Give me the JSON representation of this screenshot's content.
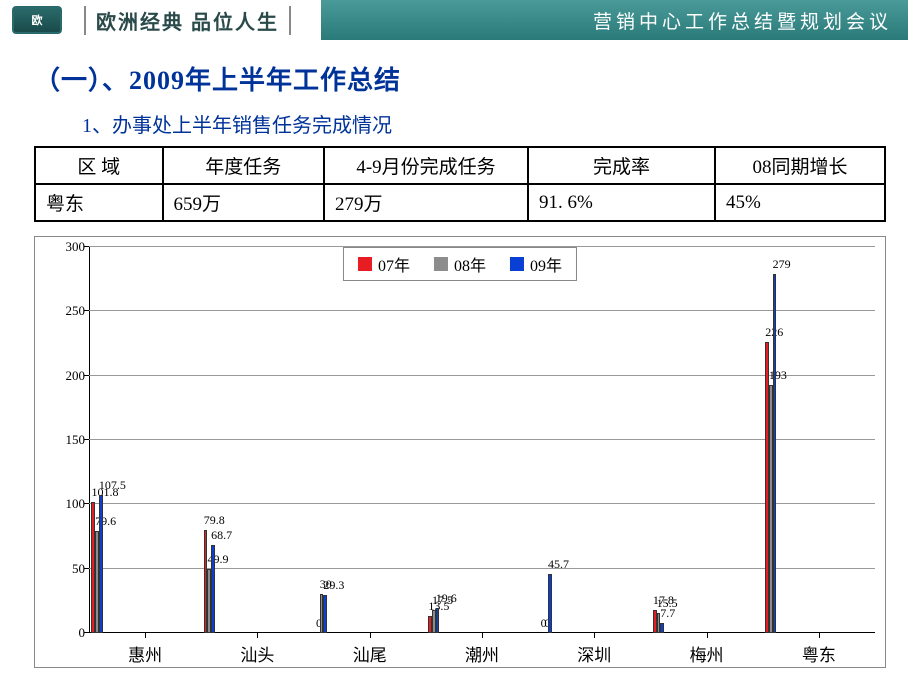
{
  "header": {
    "logo_text": "欧",
    "tagline": "欧洲经典  品位人生",
    "right_title": "营销中心工作总结暨规划会议"
  },
  "title": "（一）、2009年上半年工作总结",
  "subtitle": "1、办事处上半年销售任务完成情况",
  "table": {
    "columns": [
      "区 域",
      "年度任务",
      "4-9月份完成任务",
      "完成率",
      "08同期增长"
    ],
    "rows": [
      [
        "粤东",
        "659万",
        "279万",
        "91. 6%",
        "45%"
      ]
    ],
    "col_widths_pct": [
      15,
      19,
      24,
      22,
      20
    ],
    "border_color": "#000000",
    "header_align": "center",
    "cell_align": "left",
    "fontsize": 19
  },
  "chart": {
    "type": "bar",
    "categories": [
      "惠州",
      "汕头",
      "汕尾",
      "潮州",
      "深圳",
      "梅州",
      "粤东"
    ],
    "series": [
      {
        "name": "07年",
        "color": "#e81c23",
        "values": [
          101.8,
          79.8,
          0,
          13.5,
          0,
          17.8,
          226
        ]
      },
      {
        "name": "08年",
        "color": "#8c8c8c",
        "values": [
          79.6,
          49.9,
          30,
          17.5,
          0,
          15.5,
          193
        ]
      },
      {
        "name": "09年",
        "color": "#0a3fd6",
        "values": [
          107.5,
          68.7,
          29.3,
          19.6,
          45.7,
          7.7,
          279
        ]
      }
    ],
    "ylim": [
      0,
      300
    ],
    "ytick_step": 50,
    "yticks": [
      0,
      50,
      100,
      150,
      200,
      250,
      300
    ],
    "grid_color": "#999999",
    "axis_color": "#000000",
    "background_color": "#ffffff",
    "legend_position": "top-center",
    "legend_border_color": "#888888",
    "bar_width_ratio": 0.23,
    "group_gap_ratio": 0.18,
    "value_label_fontsize": 12,
    "xaxis_label_fontsize": 17,
    "yaxis_label_fontsize": 13,
    "title_fontsize": 0
  },
  "colors": {
    "header_bg_start": "#4a9a9a",
    "header_bg_end": "#2a7a7a",
    "title_color": "#003399",
    "page_bg": "#ffffff"
  }
}
